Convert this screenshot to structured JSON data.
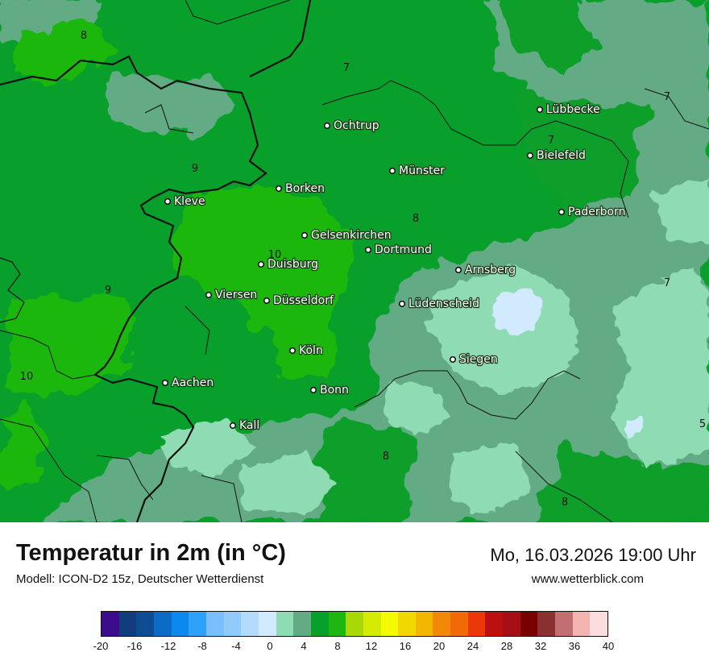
{
  "colors": {
    "t4": "#8fdcb4",
    "t6": "#63ab84",
    "t8": "#089f2a",
    "t10": "#1eb711",
    "t2": "#d2eafe",
    "border": "#111111"
  },
  "map": {
    "cities": [
      {
        "name": "Lübbecke"
      },
      {
        "name": "Ochtrup"
      },
      {
        "name": "Bielefeld"
      },
      {
        "name": "Münster"
      },
      {
        "name": "Borken"
      },
      {
        "name": "Kleve"
      },
      {
        "name": "Paderborn"
      },
      {
        "name": "Gelsenkirchen"
      },
      {
        "name": "Dortmund"
      },
      {
        "name": "Duisburg"
      },
      {
        "name": "Arnsberg"
      },
      {
        "name": "Viersen"
      },
      {
        "name": "Düsseldorf"
      },
      {
        "name": "Lüdenscheid"
      },
      {
        "name": "Köln"
      },
      {
        "name": "Siegen"
      },
      {
        "name": "Aachen"
      },
      {
        "name": "Bonn"
      },
      {
        "name": "Kall"
      }
    ],
    "contour_labels": [
      "8",
      "7",
      "7",
      "7",
      "9",
      "8",
      "10",
      "9",
      "7",
      "10",
      "5",
      "8",
      "8"
    ]
  },
  "footer": {
    "title": "Temperatur in 2m (in °C)",
    "model": "Modell: ICON-D2 15z, Deutscher Wetterdienst",
    "datetime": "Mo, 16.03.2026 19:00 Uhr",
    "website": "www.wetterblick.com"
  },
  "legend": {
    "colors": [
      "#3b0c8c",
      "#133c7c",
      "#0e4d91",
      "#0b6bc6",
      "#0b89ef",
      "#2ea1fb",
      "#7abefc",
      "#92cafc",
      "#b4dafd",
      "#d2eafe",
      "#8fdcb4",
      "#63ab84",
      "#089f2a",
      "#1eb711",
      "#a8d808",
      "#d4ec04",
      "#f4fa00",
      "#f2d800",
      "#f2b800",
      "#f28808",
      "#f26a08",
      "#ea3808",
      "#bc1010",
      "#a40e14",
      "#7a0000",
      "#8a3030",
      "#c07070",
      "#f4b4b0",
      "#fcdcdc"
    ],
    "tick_labels": [
      "-20",
      "-16",
      "-12",
      "-8",
      "-4",
      "0",
      "4",
      "8",
      "12",
      "16",
      "20",
      "24",
      "28",
      "32",
      "36",
      "40"
    ]
  }
}
